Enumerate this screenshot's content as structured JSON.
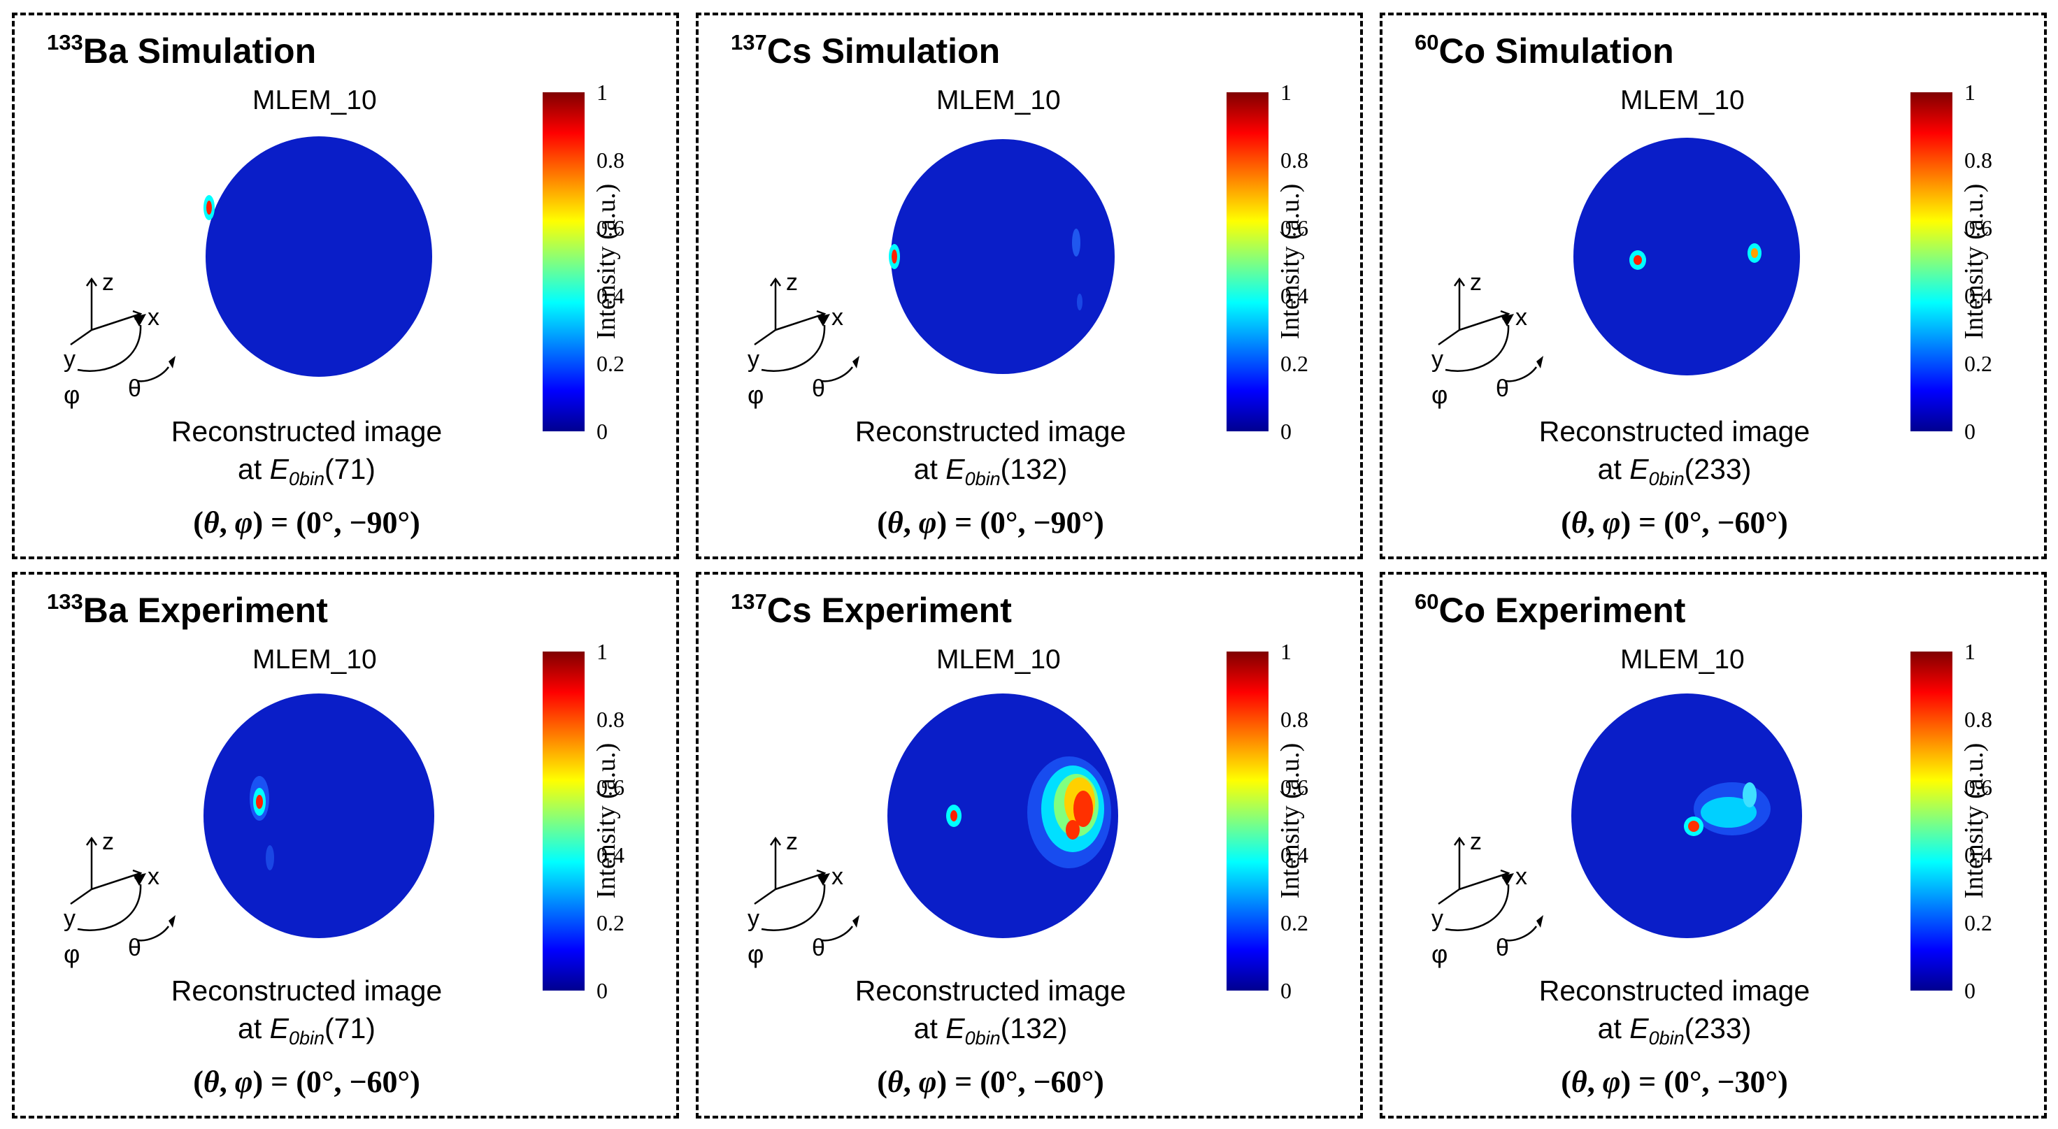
{
  "common": {
    "mlem_label": "MLEM_10",
    "recon_line1": "Reconstructed image",
    "recon_at": "at ",
    "e_symbol": "E",
    "e_subscript": "0bin",
    "colorbar_ticks": [
      "0",
      "0.2",
      "0.4",
      "0.6",
      "0.8",
      "1"
    ],
    "colorbar_label": "Intensity (a.u.)",
    "axis_labels": {
      "z": "z",
      "x": "x",
      "y": "y",
      "phi": "φ",
      "theta": "θ"
    },
    "angle_prefix": "(",
    "angle_theta": "θ",
    "angle_comma": ", ",
    "angle_phi": "φ",
    "angle_eq": ") = "
  },
  "colormap": [
    "#00008f",
    "#0000ff",
    "#0080ff",
    "#00ffff",
    "#80ff80",
    "#ffff00",
    "#ff8000",
    "#ff0000",
    "#800000"
  ],
  "panels": [
    {
      "isotope_mass": "133",
      "element": "Ba",
      "kind": "Simulation",
      "bin_value": "(71)",
      "angle_value": "(0°, −90°)"
    },
    {
      "isotope_mass": "137",
      "element": "Cs",
      "kind": "Simulation",
      "bin_value": "(132)",
      "angle_value": "(0°, −90°)"
    },
    {
      "isotope_mass": "60",
      "element": "Co",
      "kind": "Simulation",
      "bin_value": "(233)",
      "angle_value": "(0°, −60°)"
    },
    {
      "isotope_mass": "133",
      "element": "Ba",
      "kind": "Experiment",
      "bin_value": "(71)",
      "angle_value": "(0°, −60°)"
    },
    {
      "isotope_mass": "137",
      "element": "Cs",
      "kind": "Experiment",
      "bin_value": "(132)",
      "angle_value": "(0°, −60°)"
    },
    {
      "isotope_mass": "60",
      "element": "Co",
      "kind": "Experiment",
      "bin_value": "(233)",
      "angle_value": "(0°, −30°)"
    }
  ]
}
